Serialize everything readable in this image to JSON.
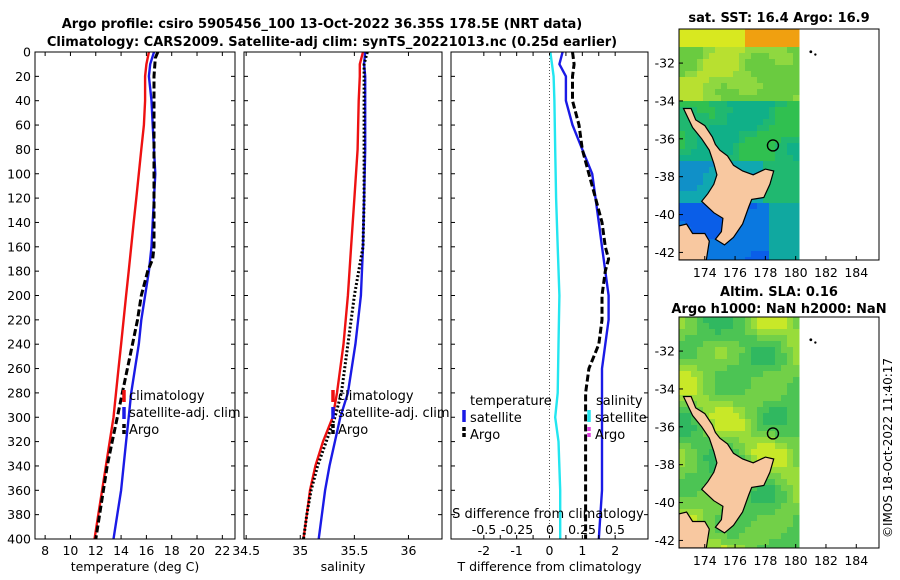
{
  "header": {
    "line1": "Argo profile: csiro 5905456_100 13-Oct-2022 36.35S 178.5E (NRT data)",
    "line2": "Climatology: CARS2009. Satellite-adj clim: synTS_20221013.nc (0.25d earlier)"
  },
  "credit": "©IMOS 18-Oct-2022 11:40:17",
  "colors": {
    "red": "#ee1111",
    "blue": "#1a1ae6",
    "black": "#000000",
    "cyan": "#22e6f0",
    "magenta": "#e040e0",
    "land": "#f8c8a0"
  },
  "chart_data": [
    {
      "type": "line",
      "id": "temperature",
      "xlabel": "temperature (deg C)",
      "ylabel": "",
      "xlim": [
        7.2,
        23
      ],
      "ylim": [
        400,
        0
      ],
      "xticks": [
        8,
        10,
        12,
        14,
        16,
        18,
        20,
        22
      ],
      "yticks": [
        0,
        20,
        40,
        60,
        80,
        100,
        120,
        140,
        160,
        180,
        200,
        220,
        240,
        260,
        280,
        300,
        320,
        340,
        360,
        380,
        400
      ],
      "legend": {
        "position": "bottom-right",
        "entries": [
          "climatology",
          "satellite-adj. clim",
          "Argo"
        ]
      },
      "series": [
        {
          "name": "climatology",
          "color": "red",
          "style": "solid",
          "depth": [
            0,
            10,
            20,
            40,
            60,
            80,
            100,
            120,
            140,
            160,
            180,
            200,
            220,
            240,
            260,
            280,
            300,
            320,
            340,
            360,
            380,
            400
          ],
          "values": [
            16.2,
            16.0,
            15.9,
            15.9,
            15.8,
            15.6,
            15.4,
            15.2,
            15.0,
            14.8,
            14.6,
            14.4,
            14.2,
            14.0,
            13.8,
            13.6,
            13.4,
            13.1,
            12.8,
            12.5,
            12.2,
            11.9
          ]
        },
        {
          "name": "satellite-adj. clim",
          "color": "blue",
          "style": "solid",
          "depth": [
            0,
            10,
            20,
            40,
            60,
            80,
            100,
            120,
            140,
            160,
            180,
            200,
            220,
            240,
            260,
            280,
            300,
            320,
            340,
            360,
            380,
            400
          ],
          "values": [
            16.6,
            16.3,
            16.2,
            16.4,
            16.5,
            16.6,
            16.7,
            16.6,
            16.5,
            16.4,
            16.2,
            15.9,
            15.6,
            15.4,
            15.1,
            14.8,
            14.6,
            14.4,
            14.2,
            14.0,
            13.7,
            13.4
          ]
        },
        {
          "name": "Argo",
          "color": "black",
          "style": "dashed",
          "depth": [
            0,
            5,
            20,
            40,
            60,
            80,
            100,
            120,
            140,
            160,
            170,
            180,
            200,
            220,
            240,
            260,
            280,
            300,
            320,
            340,
            360,
            380,
            400
          ],
          "values": [
            16.9,
            16.7,
            16.6,
            16.6,
            16.6,
            16.6,
            16.6,
            16.6,
            16.6,
            16.6,
            16.5,
            16.1,
            15.6,
            15.3,
            14.9,
            14.5,
            14.1,
            13.7,
            13.3,
            12.9,
            12.6,
            12.3,
            12.0
          ]
        }
      ]
    },
    {
      "type": "line",
      "id": "salinity",
      "xlabel": "salinity",
      "ylabel": "",
      "xlim": [
        34.48,
        36.31
      ],
      "ylim": [
        400,
        0
      ],
      "xticks": [
        34.5,
        35,
        35.5,
        36
      ],
      "legend": {
        "position": "bottom-right",
        "entries": [
          "climatology",
          "satellite-adj. clim",
          "Argo"
        ]
      },
      "series": [
        {
          "name": "climatology",
          "color": "red",
          "style": "solid",
          "depth": [
            0,
            10,
            20,
            40,
            80,
            120,
            160,
            200,
            240,
            280,
            300,
            320,
            340,
            360,
            380,
            400
          ],
          "values": [
            35.58,
            35.55,
            35.55,
            35.54,
            35.53,
            35.5,
            35.47,
            35.44,
            35.4,
            35.34,
            35.3,
            35.21,
            35.14,
            35.09,
            35.06,
            35.03
          ]
        },
        {
          "name": "satellite-adj. clim",
          "color": "blue",
          "style": "solid",
          "depth": [
            0,
            10,
            20,
            40,
            80,
            120,
            160,
            200,
            240,
            280,
            300,
            320,
            340,
            360,
            380,
            400
          ],
          "values": [
            35.6,
            35.59,
            35.6,
            35.6,
            35.6,
            35.59,
            35.58,
            35.56,
            35.51,
            35.44,
            35.37,
            35.32,
            35.27,
            35.23,
            35.2,
            35.17
          ]
        },
        {
          "name": "Argo",
          "color": "black",
          "style": "dotted",
          "depth": [
            0,
            10,
            20,
            40,
            80,
            120,
            160,
            180,
            200,
            240,
            280,
            300,
            320,
            340,
            360,
            380,
            400
          ],
          "values": [
            35.62,
            35.59,
            35.59,
            35.59,
            35.59,
            35.59,
            35.58,
            35.54,
            35.5,
            35.44,
            35.38,
            35.32,
            35.24,
            35.16,
            35.1,
            35.06,
            35.03
          ]
        }
      ]
    },
    {
      "type": "line",
      "id": "difference",
      "xlabel": "T difference from climatology",
      "x2label": "S difference from climatology",
      "xlim": [
        -3,
        3
      ],
      "x2lim": [
        -1.2,
        1.2
      ],
      "ylim": [
        400,
        0
      ],
      "xticks": [
        -2,
        -1.5,
        -1,
        -0.5,
        0,
        0.5,
        1,
        1.5,
        2
      ],
      "xticklabels": [
        "-2",
        "-1.5",
        "-1",
        "-0.5",
        "0",
        "0.5",
        "1",
        "1.5",
        "2"
      ],
      "x2ticks": [
        -0.5,
        -0.25,
        0,
        0.25,
        0.5
      ],
      "x2ticklabels": [
        "-0.5",
        "-0.25",
        "0",
        "0.25",
        "0.5"
      ],
      "legend_t": {
        "title": "temperature",
        "entries": [
          "satellite",
          "Argo"
        ]
      },
      "legend_s": {
        "title": "salinity",
        "entries": [
          "satellite",
          "Argo"
        ]
      },
      "series": [
        {
          "name": "T satellite",
          "color": "blue",
          "style": "solid",
          "depth": [
            0,
            10,
            20,
            40,
            60,
            80,
            100,
            120,
            140,
            160,
            180,
            200,
            220,
            240,
            260,
            280,
            300,
            320,
            340,
            360,
            380,
            400
          ],
          "values": [
            0.4,
            0.3,
            0.5,
            0.5,
            0.7,
            1.0,
            1.3,
            1.4,
            1.5,
            1.6,
            1.7,
            1.8,
            1.8,
            1.7,
            1.6,
            1.6,
            1.6,
            1.6,
            1.6,
            1.6,
            1.55,
            1.5
          ]
        },
        {
          "name": "T Argo",
          "color": "black",
          "style": "dashed",
          "depth": [
            0,
            10,
            20,
            40,
            60,
            80,
            100,
            120,
            140,
            160,
            170,
            180,
            200,
            220,
            240,
            260,
            280,
            300,
            320,
            340,
            360,
            380,
            400
          ],
          "values": [
            0.7,
            0.75,
            0.7,
            0.7,
            0.9,
            1.0,
            1.2,
            1.4,
            1.6,
            1.7,
            1.8,
            1.7,
            1.6,
            1.6,
            1.5,
            1.2,
            1.1,
            1.1,
            1.1,
            1.1,
            1.1,
            1.1,
            1.1
          ]
        },
        {
          "name": "S satellite",
          "color": "cyan",
          "style": "solid",
          "axis": "x2",
          "depth": [
            0,
            10,
            20,
            40,
            80,
            120,
            160,
            200,
            240,
            280,
            300,
            320,
            360,
            400
          ],
          "values": [
            0.01,
            0.03,
            0.05,
            0.06,
            0.07,
            0.08,
            0.1,
            0.12,
            0.11,
            0.1,
            0.07,
            0.11,
            0.13,
            0.13
          ]
        },
        {
          "name": "S Argo",
          "color": "magenta",
          "style": "dashed",
          "axis": "x2",
          "values": []
        }
      ]
    },
    {
      "type": "heatmap",
      "id": "sst-map",
      "title": "sat. SST: 16.4 Argo: 16.9",
      "xticks": [
        174,
        176,
        178,
        180,
        182,
        184
      ],
      "yticks": [
        -32,
        -34,
        -36,
        -38,
        -40,
        -42
      ],
      "xlim": [
        172.3,
        185.5
      ],
      "ylim": [
        -42.4,
        -30.2
      ],
      "data_xlim": [
        172.3,
        180.0
      ],
      "marker": {
        "lon": 178.5,
        "lat": -36.35
      }
    },
    {
      "type": "heatmap",
      "id": "sla-map",
      "title": "Altim. SLA: 0.16",
      "subtitle": "Argo h1000: NaN h2000: NaN",
      "xticks": [
        174,
        176,
        178,
        180,
        182,
        184
      ],
      "yticks": [
        -32,
        -34,
        -36,
        -38,
        -40,
        -42
      ],
      "xlim": [
        172.3,
        185.5
      ],
      "ylim": [
        -42.4,
        -30.2
      ],
      "data_xlim": [
        172.3,
        180.0
      ],
      "marker": {
        "lon": 178.5,
        "lat": -36.35
      }
    }
  ]
}
